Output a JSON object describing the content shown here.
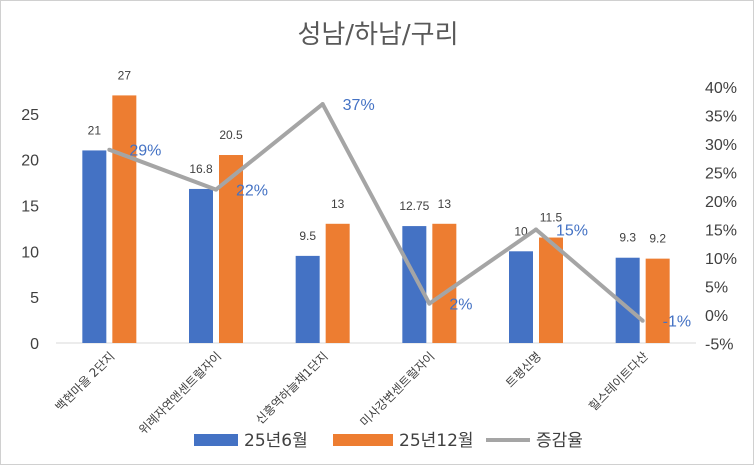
{
  "chart_data": {
    "type": "bar",
    "title": "성남/하남/구리",
    "categories": [
      "백현마을 2단지",
      "위례자연앤센트럴자이",
      "신흥역하늘채1단지",
      "미사강변센트럴자이",
      "트평신명",
      "힐스테이트다산"
    ],
    "series": [
      {
        "name": "25년6월",
        "type": "bar",
        "axis": "left",
        "values": [
          21,
          16.8,
          9.5,
          12.75,
          10,
          9.3
        ],
        "labels": [
          "21",
          "16.8",
          "9.5",
          "12.75",
          "10",
          "9.3"
        ],
        "color": "#4472c4"
      },
      {
        "name": "25년12월",
        "type": "bar",
        "axis": "left",
        "values": [
          27,
          20.5,
          13,
          13,
          11.5,
          9.2
        ],
        "labels": [
          "27",
          "20.5",
          "13",
          "13",
          "11.5",
          "9.2"
        ],
        "color": "#ed7d31"
      },
      {
        "name": "증감율",
        "type": "line",
        "axis": "right",
        "values": [
          29,
          22,
          37,
          2,
          15,
          -1
        ],
        "labels": [
          "29%",
          "22%",
          "37%",
          "2%",
          "15%",
          "-1%"
        ],
        "color": "#a5a5a5"
      }
    ],
    "y_left": {
      "ylim": [
        0,
        30
      ],
      "ticks": [
        "0",
        "5",
        "10",
        "15",
        "20",
        "25"
      ]
    },
    "y_right": {
      "ylim": [
        -5,
        40
      ],
      "ticks": [
        "-5%",
        "0%",
        "5%",
        "10%",
        "15%",
        "20%",
        "25%",
        "30%",
        "35%",
        "40%"
      ]
    },
    "legend_position": "bottom",
    "grid": false
  }
}
